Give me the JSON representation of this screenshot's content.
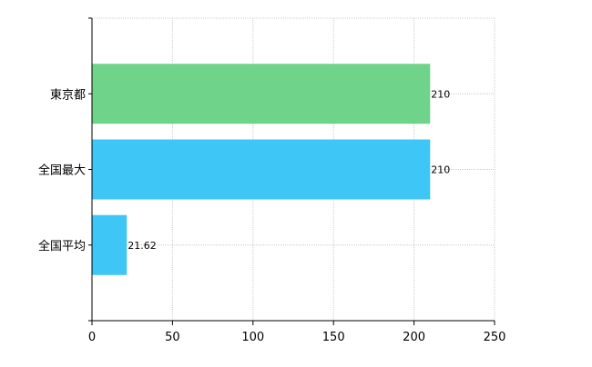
{
  "chart_data": {
    "type": "bar",
    "orientation": "horizontal",
    "categories": [
      "東京都",
      "全国最大",
      "全国平均"
    ],
    "values": [
      210,
      210,
      21.62
    ],
    "data_labels": [
      "210",
      "210",
      "21.62"
    ],
    "colors": [
      "#6fd48a",
      "#3ec6f7",
      "#3ec6f7"
    ],
    "xlim": [
      0,
      250
    ],
    "x_ticks": [
      0,
      50,
      100,
      150,
      200,
      250
    ],
    "title": "",
    "xlabel": "",
    "ylabel": "",
    "grid": true,
    "legend": "none"
  }
}
